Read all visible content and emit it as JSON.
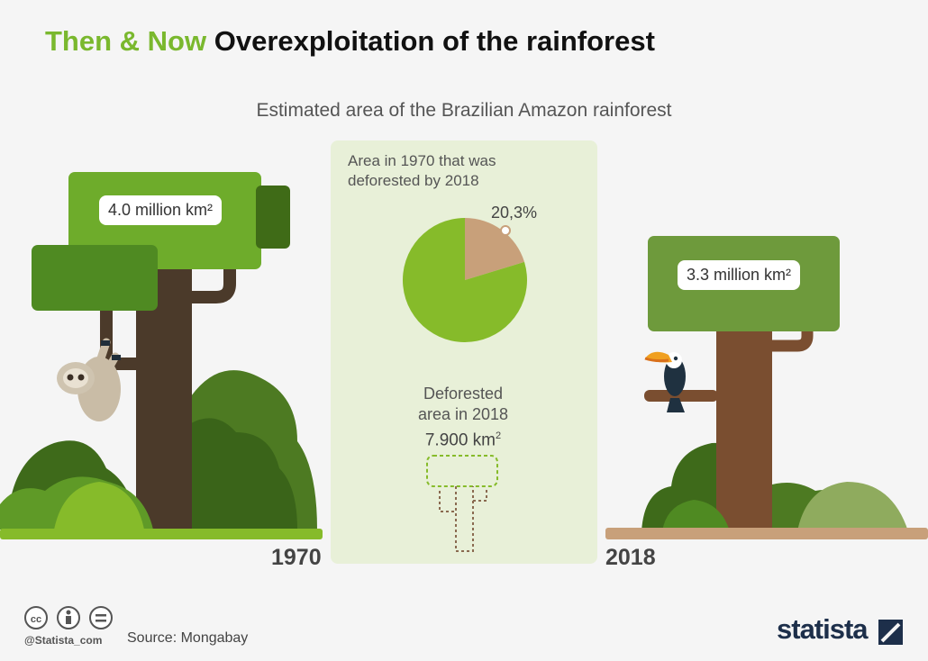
{
  "title": {
    "accent": "Then & Now",
    "main": "Overexploitation of the rainforest"
  },
  "subtitle": "Estimated area of the Brazilian Amazon rainforest",
  "chart_data": {
    "type": "pie",
    "caption": "Area in 1970 that was deforested by 2018",
    "caption_lines": [
      "Area in 1970 that was",
      "deforested by 2018"
    ],
    "slices": [
      {
        "name": "deforested by 2018",
        "value": 20.3,
        "color": "#c8a07a"
      },
      {
        "name": "remaining",
        "value": 79.7,
        "color": "#86bb2a"
      }
    ],
    "pct_label": "20,3%"
  },
  "area_1970": {
    "label": "4.0 million km²",
    "year": "1970"
  },
  "area_2018": {
    "label": "3.3 million km²",
    "year": "2018"
  },
  "deforested": {
    "caption_lines": [
      "Deforested",
      "area in 2018"
    ],
    "value": "7.900 km",
    "unit_sup": "2"
  },
  "footer": {
    "handle": "@Statista_com",
    "source": "Source: Mongabay",
    "brand": "statista",
    "license_icons": [
      "cc-icon",
      "attribution-icon",
      "no-derivatives-icon"
    ]
  },
  "colors": {
    "accent": "#7ab82e",
    "panel": "#e8f0d8",
    "ground_1970": "#86bb2a",
    "ground_2018": "#c8a07a",
    "canopy_2018": "#6e9a3c",
    "trunk_1970": "#4b3a2a",
    "trunk_2018": "#7a4e30",
    "brand": "#1d2f4a"
  }
}
